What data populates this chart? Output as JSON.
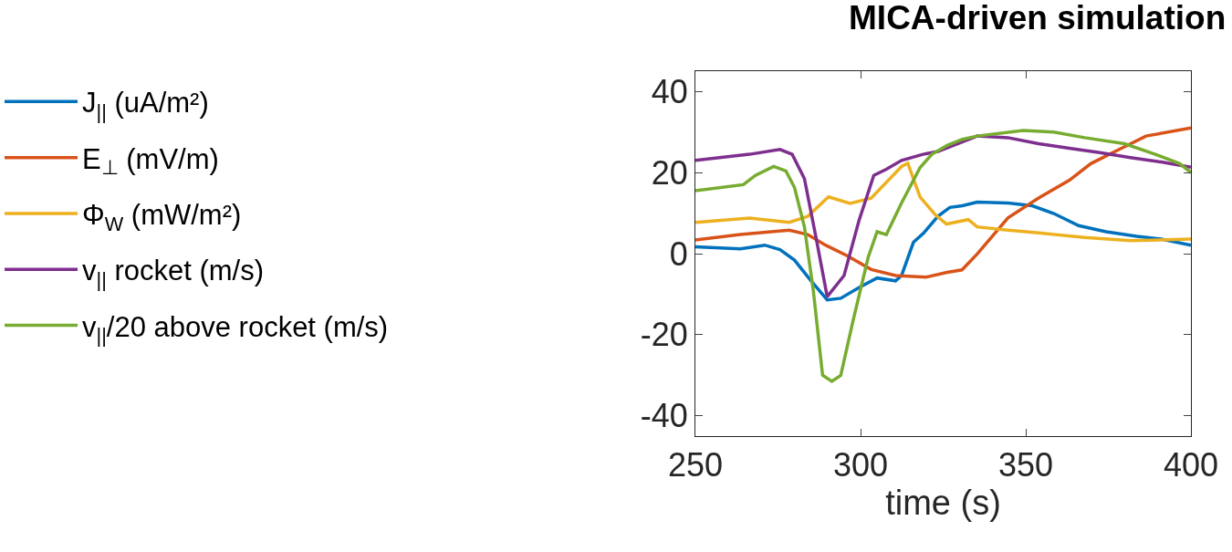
{
  "chart_data": {
    "type": "line",
    "title": "MICA-driven simulation",
    "xlabel": "time (s)",
    "xlim": [
      250,
      400
    ],
    "xticks": [
      250,
      300,
      350,
      400
    ],
    "ylim": [
      -45,
      45
    ],
    "yticks": [
      -40,
      -20,
      0,
      20,
      40
    ],
    "legend": "left",
    "marker": "none",
    "line_style": "solid",
    "series": [
      {
        "name": "J$_{||}$ (uA/m²)",
        "color": "#0072bd",
        "x": [
          250,
          263.6,
          271,
          275.6,
          280,
          284.8,
          289.9,
          294,
          299.5,
          305,
          310.6,
          312.4,
          316,
          319,
          323.4,
          327,
          330.8,
          335.3,
          344.6,
          352,
          358.5,
          366,
          374.3,
          383.6,
          391,
          400
        ],
        "values": [
          1.7,
          1.2,
          2.1,
          1,
          -1.6,
          -6.5,
          -11.4,
          -11,
          -8.4,
          -6,
          -6.7,
          -5.4,
          2.8,
          5,
          9.2,
          11.4,
          11.8,
          12.7,
          12.5,
          11.8,
          9.9,
          6.9,
          5.4,
          4.3,
          3.6,
          2.1
        ]
      },
      {
        "name": "E$_{⊥}$ (mV/m)",
        "color": "#d95319",
        "x": [
          250,
          263.6,
          278.4,
          284,
          289.4,
          295.9,
          303.2,
          310.6,
          319.8,
          326.2,
          330.7,
          335.3,
          344.6,
          353.9,
          363.2,
          369.7,
          378,
          386.4,
          400
        ],
        "values": [
          3.4,
          4.7,
          5.8,
          4.7,
          2.1,
          -0.5,
          -3.9,
          -5.4,
          -5.8,
          -4.6,
          -4,
          -0.1,
          8.8,
          13.7,
          18.1,
          22.2,
          25.6,
          29,
          31
        ]
      },
      {
        "name": "Φ$_{W}$ (mW/m²)",
        "color": "#edb120",
        "x": [
          250,
          266.4,
          278.4,
          284,
          290.3,
          296.8,
          303.2,
          312.4,
          314.3,
          318,
          322.6,
          326,
          332.6,
          335.3,
          344.6,
          353.9,
          367.8,
          381.7,
          400
        ],
        "values": [
          7.7,
          8.8,
          7.7,
          9.2,
          14,
          12.4,
          13.7,
          21.5,
          22.3,
          14,
          9.6,
          7.3,
          8.4,
          6.6,
          5.8,
          5.1,
          4,
          3.2,
          3.6
        ]
      },
      {
        "name": "v$_{||}$ rocket (m/s)",
        "color": "#7e2f8e",
        "x": [
          250,
          266.4,
          275.6,
          279.3,
          283,
          286.6,
          289.9,
          295,
          299.5,
          304,
          307.8,
          312.4,
          318.9,
          323.4,
          326,
          335.3,
          344.6,
          353.9,
          363.2,
          372.4,
          381.7,
          391,
          400
        ],
        "values": [
          23,
          24.5,
          25.7,
          24.5,
          18.5,
          3.6,
          -10.6,
          -5.4,
          8.1,
          19.3,
          20.8,
          23,
          24.5,
          25.2,
          26,
          29,
          28.6,
          27.1,
          26,
          24.9,
          23.7,
          22.6,
          21.3
        ]
      },
      {
        "name": "v$_{||}$/20 above rocket (m/s)",
        "color": "#77ac30",
        "x": [
          250,
          264.5,
          268.2,
          273.7,
          277.4,
          280,
          283,
          285.7,
          288.5,
          291.3,
          294,
          297.7,
          302.3,
          305,
          307.8,
          312.4,
          318,
          321.6,
          326.2,
          330.8,
          335.3,
          349.2,
          358.5,
          367.8,
          379.9,
          389.2,
          396.6,
          400
        ],
        "values": [
          15.5,
          17,
          19.3,
          21.5,
          20.4,
          16.3,
          6.6,
          -9.1,
          -30,
          -31.5,
          -30,
          -16.6,
          -0.9,
          5.4,
          4.7,
          12.5,
          21.2,
          24.5,
          26.7,
          28.2,
          29,
          30.4,
          30,
          28.6,
          27.1,
          24.5,
          22.2,
          20
        ]
      }
    ]
  }
}
